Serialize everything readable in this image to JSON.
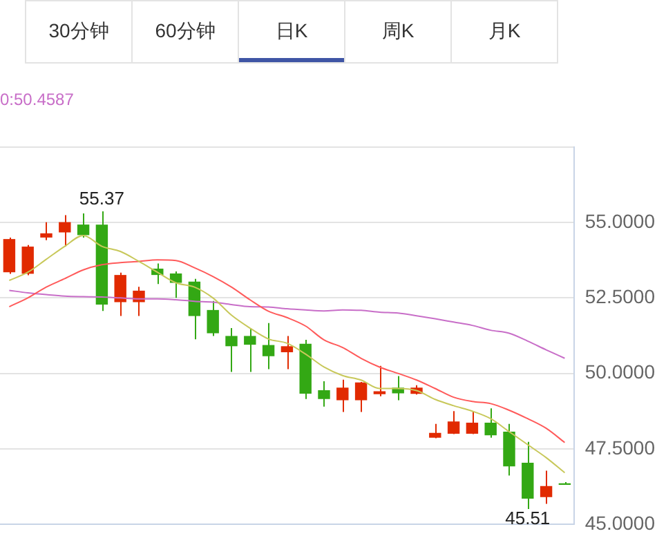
{
  "chart_data": [
    {
      "type": "other",
      "annotations": [
        "30分钟",
        "60分钟",
        "日K",
        "周K",
        "月K"
      ]
    },
    {
      "type": "candlestick",
      "categories": [
        null,
        null,
        null,
        null,
        null,
        null,
        null,
        null,
        null,
        null,
        null,
        null,
        null,
        null,
        null,
        null,
        null,
        null,
        null,
        null,
        null,
        null,
        null,
        null,
        null,
        null,
        null,
        null,
        null,
        null,
        null
      ],
      "ohlc": [
        [
          53.35,
          54.5,
          53.3,
          54.45
        ],
        [
          53.3,
          54.25,
          53.25,
          54.2
        ],
        [
          54.5,
          55.01,
          54.41,
          54.64
        ],
        [
          54.67,
          55.24,
          54.2,
          55.01
        ],
        [
          54.93,
          55.3,
          54.5,
          54.58
        ],
        [
          54.93,
          55.37,
          52.07,
          52.28
        ],
        [
          52.36,
          53.34,
          51.9,
          53.26
        ],
        [
          52.36,
          52.87,
          51.9,
          52.74
        ],
        [
          53.47,
          53.64,
          52.96,
          53.26
        ],
        [
          53.31,
          53.38,
          52.5,
          53.0
        ],
        [
          53.04,
          53.13,
          51.13,
          51.9
        ],
        [
          52.1,
          52.4,
          51.24,
          51.33
        ],
        [
          51.24,
          51.5,
          50.05,
          50.9
        ],
        [
          51.24,
          51.5,
          50.05,
          50.95
        ],
        [
          50.94,
          51.67,
          50.14,
          50.57
        ],
        [
          50.7,
          51.24,
          50.14,
          50.9
        ],
        [
          50.98,
          51.11,
          49.15,
          49.33
        ],
        [
          49.44,
          49.74,
          48.9,
          49.15
        ],
        [
          49.11,
          49.79,
          48.72,
          49.53
        ],
        [
          49.11,
          49.72,
          48.72,
          49.7
        ],
        [
          49.31,
          50.25,
          49.24,
          49.41
        ],
        [
          49.53,
          49.91,
          49.11,
          49.34
        ],
        [
          49.32,
          49.61,
          49.3,
          49.53
        ],
        [
          47.87,
          48.33,
          47.85,
          48.03
        ],
        [
          48.0,
          48.75,
          47.99,
          48.41
        ],
        [
          48.0,
          48.75,
          47.99,
          48.37
        ],
        [
          48.37,
          48.84,
          47.87,
          47.95
        ],
        [
          48.07,
          48.33,
          46.62,
          46.92
        ],
        [
          47.04,
          47.73,
          45.51,
          45.85
        ],
        [
          45.9,
          46.78,
          45.68,
          46.27
        ],
        [
          46.36,
          46.4,
          46.31,
          46.31
        ]
      ],
      "colors": [
        "#e12a00",
        "#e12a00",
        "#e12a00",
        "#e12a00",
        "#33a814",
        "#33a814",
        "#e12a00",
        "#e12a00",
        "#33a814",
        "#33a814",
        "#33a814",
        "#33a814",
        "#33a814",
        "#33a814",
        "#33a814",
        "#e12a00",
        "#33a814",
        "#33a814",
        "#e12a00",
        "#e12a00",
        "#e12a00",
        "#33a814",
        "#e12a00",
        "#e12a00",
        "#e12a00",
        "#e12a00",
        "#33a814",
        "#33a814",
        "#33a814",
        "#e12a00",
        "#33a814"
      ],
      "series": [
        {
          "type": "line",
          "color": "#c8c85a",
          "values": [
            53.08,
            53.35,
            53.78,
            54.21,
            54.57,
            54.21,
            54.04,
            53.71,
            53.35,
            53.0,
            52.86,
            52.5,
            51.93,
            51.5,
            51.14,
            51.0,
            50.64,
            50.21,
            49.93,
            49.78,
            49.5,
            49.5,
            49.43,
            49.14,
            48.93,
            48.75,
            48.5,
            48.07,
            47.64,
            47.21,
            46.71
          ]
        },
        {
          "type": "line",
          "color": "#ff5a5a",
          "values": [
            52.21,
            52.5,
            52.86,
            53.14,
            53.43,
            53.6,
            53.67,
            53.71,
            53.76,
            53.74,
            53.5,
            53.21,
            52.86,
            52.44,
            52.06,
            51.85,
            51.57,
            51.11,
            50.86,
            50.5,
            50.21,
            50.0,
            49.78,
            49.5,
            49.21,
            49.07,
            49.0,
            48.78,
            48.5,
            48.18,
            47.71
          ]
        },
        {
          "type": "line",
          "color": "#c86ec8",
          "values": [
            52.75,
            52.67,
            52.61,
            52.56,
            52.54,
            52.53,
            52.5,
            52.47,
            52.47,
            52.44,
            52.39,
            52.36,
            52.28,
            52.21,
            52.2,
            52.14,
            52.1,
            52.07,
            52.1,
            52.09,
            52.03,
            52.0,
            51.91,
            51.81,
            51.7,
            51.59,
            51.43,
            51.33,
            51.07,
            50.78,
            50.5
          ]
        }
      ],
      "ylim": [
        45,
        57.5
      ],
      "yticks": [
        {
          "value": 45,
          "label": "45.0000"
        },
        {
          "value": 47.5,
          "label": "47.5000"
        },
        {
          "value": 50,
          "label": "50.0000"
        },
        {
          "value": 52.5,
          "label": "52.5000"
        },
        {
          "value": 55,
          "label": "55.0000"
        },
        {
          "value": 57.5,
          "label": null
        }
      ],
      "grid": "y",
      "tick_labels": "y",
      "annotations": [
        "0:50.4587",
        {
          "text": "55.37",
          "y": 55.37
        },
        {
          "text": "45.51",
          "y": 45.51
        }
      ]
    }
  ]
}
